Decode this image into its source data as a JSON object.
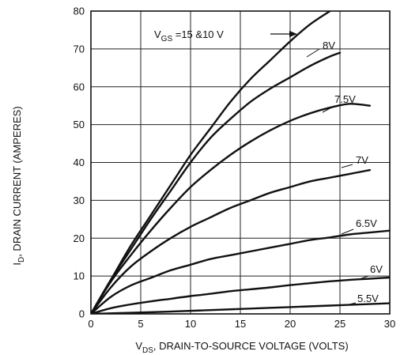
{
  "chart_data": {
    "type": "line",
    "title": "",
    "xlim": [
      0,
      30
    ],
    "ylim": [
      0,
      80
    ],
    "grid": true,
    "xticks": [
      "0",
      "5",
      "10",
      "15",
      "20",
      "25",
      "30"
    ],
    "yticks": [
      "0",
      "10",
      "20",
      "30",
      "40",
      "50",
      "60",
      "70",
      "80"
    ],
    "xlabel": {
      "main": "V",
      "sub": "DS",
      "rest": ", DRAIN-TO-SOURCE VOLTAGE (VOLTS)"
    },
    "ylabel": {
      "main": "I",
      "sub": "D",
      "rest": ", DRAIN CURRENT (AMPERES)"
    },
    "series": [
      {
        "label_main": "V",
        "label_sub": "GS",
        "label_rest": " =15 &10 V",
        "x": [
          0,
          2,
          4,
          6,
          8,
          10,
          12,
          14,
          16,
          18,
          20,
          22,
          24
        ],
        "y": [
          0,
          9,
          18,
          26,
          34,
          42,
          49,
          56,
          62,
          67,
          72,
          76.5,
          80
        ]
      },
      {
        "label_main": "8V",
        "x": [
          0,
          2,
          4,
          6,
          8,
          10,
          12,
          14,
          16,
          18,
          20,
          22,
          24,
          25
        ],
        "y": [
          0,
          9,
          17,
          25,
          32.5,
          40,
          46.5,
          51.5,
          56,
          59.5,
          62.5,
          65.5,
          68,
          69
        ]
      },
      {
        "label_main": "7.5V",
        "x": [
          0,
          2,
          4,
          6,
          8,
          10,
          12,
          14,
          16,
          18,
          20,
          22,
          24,
          26,
          28
        ],
        "y": [
          0,
          8.5,
          15.5,
          22,
          28,
          33.5,
          38,
          42,
          45.5,
          48.5,
          51,
          53,
          54.5,
          55.5,
          55
        ]
      },
      {
        "label_main": "7V",
        "x": [
          0,
          2,
          4,
          6,
          8,
          10,
          12,
          14,
          16,
          18,
          20,
          22,
          24,
          26,
          28
        ],
        "y": [
          0,
          7,
          12.5,
          16.5,
          20,
          23,
          25.5,
          28,
          30,
          32,
          33.5,
          35,
          36,
          37,
          38
        ]
      },
      {
        "label_main": "6.5V",
        "x": [
          0,
          2,
          4,
          6,
          8,
          10,
          12,
          14,
          16,
          18,
          20,
          22,
          24,
          26,
          28,
          30
        ],
        "y": [
          0,
          4.5,
          7.5,
          9.5,
          11.5,
          13,
          14.5,
          15.5,
          16.5,
          17.5,
          18.5,
          19.5,
          20.2,
          21,
          21.5,
          22
        ]
      },
      {
        "label_main": "6V",
        "x": [
          0,
          2,
          4,
          6,
          8,
          10,
          12,
          14,
          16,
          18,
          20,
          22,
          24,
          26,
          28,
          30
        ],
        "y": [
          0,
          1.5,
          2.5,
          3.3,
          4,
          4.7,
          5.3,
          6,
          6.5,
          7,
          7.6,
          8.1,
          8.6,
          9,
          9.3,
          9.6
        ]
      },
      {
        "label_main": "5.5V",
        "x": [
          0,
          4,
          8,
          12,
          16,
          20,
          24,
          28,
          30
        ],
        "y": [
          0,
          0.3,
          0.6,
          1.0,
          1.4,
          1.8,
          2.2,
          2.6,
          2.8
        ]
      }
    ]
  }
}
